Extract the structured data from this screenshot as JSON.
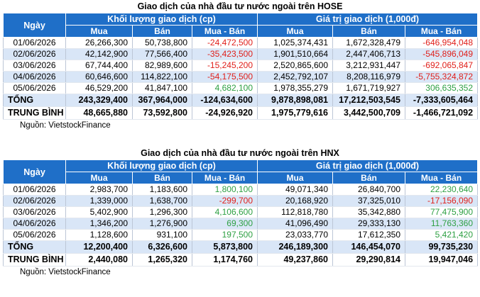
{
  "hose": {
    "title": "Giao dịch của nhà đầu tư nước ngoài trên HOSE",
    "header": {
      "ngay": "Ngày",
      "group_volume": "Khối lượng giao dịch (cp)",
      "group_value": "Giá trị giao dịch (1,000đ)",
      "mua": "Mua",
      "ban": "Bán",
      "mua_ban": "Mua - Bán"
    },
    "rows": [
      [
        "01/06/2026",
        "26,266,300",
        "50,738,800",
        "-24,472,500",
        "1,025,374,431",
        "1,672,328,479",
        "-646,954,048"
      ],
      [
        "02/06/2026",
        "42,142,900",
        "77,566,400",
        "-35,423,500",
        "1,901,510,664",
        "2,447,406,713",
        "-545,896,049"
      ],
      [
        "03/06/2026",
        "67,744,400",
        "82,989,600",
        "-15,245,200",
        "2,520,865,600",
        "3,212,931,447",
        "-692,065,847"
      ],
      [
        "04/06/2026",
        "60,646,600",
        "114,822,100",
        "-54,175,500",
        "2,452,792,107",
        "8,208,116,979",
        "-5,755,324,872"
      ],
      [
        "05/06/2026",
        "46,529,200",
        "41,847,100",
        "4,682,100",
        "1,978,355,279",
        "1,671,719,927",
        "306,635,352"
      ]
    ],
    "total": [
      "TỔNG",
      "243,329,400",
      "367,964,000",
      "-124,634,600",
      "9,878,898,081",
      "17,212,503,545",
      "-7,333,605,464"
    ],
    "average": [
      "TRUNG BÌNH",
      "48,665,880",
      "73,592,800",
      "-24,926,920",
      "1,975,779,616",
      "3,442,500,709",
      "-1,466,721,092"
    ],
    "source": "Nguồn: VietstockFinance"
  },
  "hnx": {
    "title": "Giao dịch của nhà đầu tư nước ngoài trên HNX",
    "header": {
      "ngay": "Ngày",
      "group_volume": "Khối lượng giao dịch (cp)",
      "group_value": "Giá trị giao dịch (1,000đ)",
      "mua": "Mua",
      "ban": "Bán",
      "mua_ban": "Mua - Bán"
    },
    "rows": [
      [
        "01/06/2026",
        "2,983,700",
        "1,183,600",
        "1,800,100",
        "49,071,340",
        "26,840,700",
        "22,230,640"
      ],
      [
        "02/06/2026",
        "1,339,000",
        "1,638,700",
        "-299,700",
        "20,168,920",
        "37,325,010",
        "-17,156,090"
      ],
      [
        "03/06/2026",
        "5,402,900",
        "1,296,300",
        "4,106,600",
        "112,818,780",
        "35,342,880",
        "77,475,900"
      ],
      [
        "04/06/2026",
        "1,346,200",
        "1,276,900",
        "69,300",
        "41,096,490",
        "29,333,130",
        "11,763,360"
      ],
      [
        "05/06/2026",
        "1,128,600",
        "931,100",
        "197,500",
        "23,033,770",
        "17,612,350",
        "5,421,420"
      ]
    ],
    "total": [
      "TỔNG",
      "12,200,400",
      "6,326,600",
      "5,873,800",
      "246,189,300",
      "146,454,070",
      "99,735,230"
    ],
    "average": [
      "TRUNG BÌNH",
      "2,440,080",
      "1,265,320",
      "1,174,760",
      "49,237,860",
      "29,290,814",
      "19,947,046"
    ],
    "source": "Nguồn: VietstockFinance"
  },
  "colors": {
    "header_bg": "#1f6fc8",
    "band_bg": "#d9e6f7",
    "negative": "#e0201b",
    "positive": "#2ea043"
  }
}
